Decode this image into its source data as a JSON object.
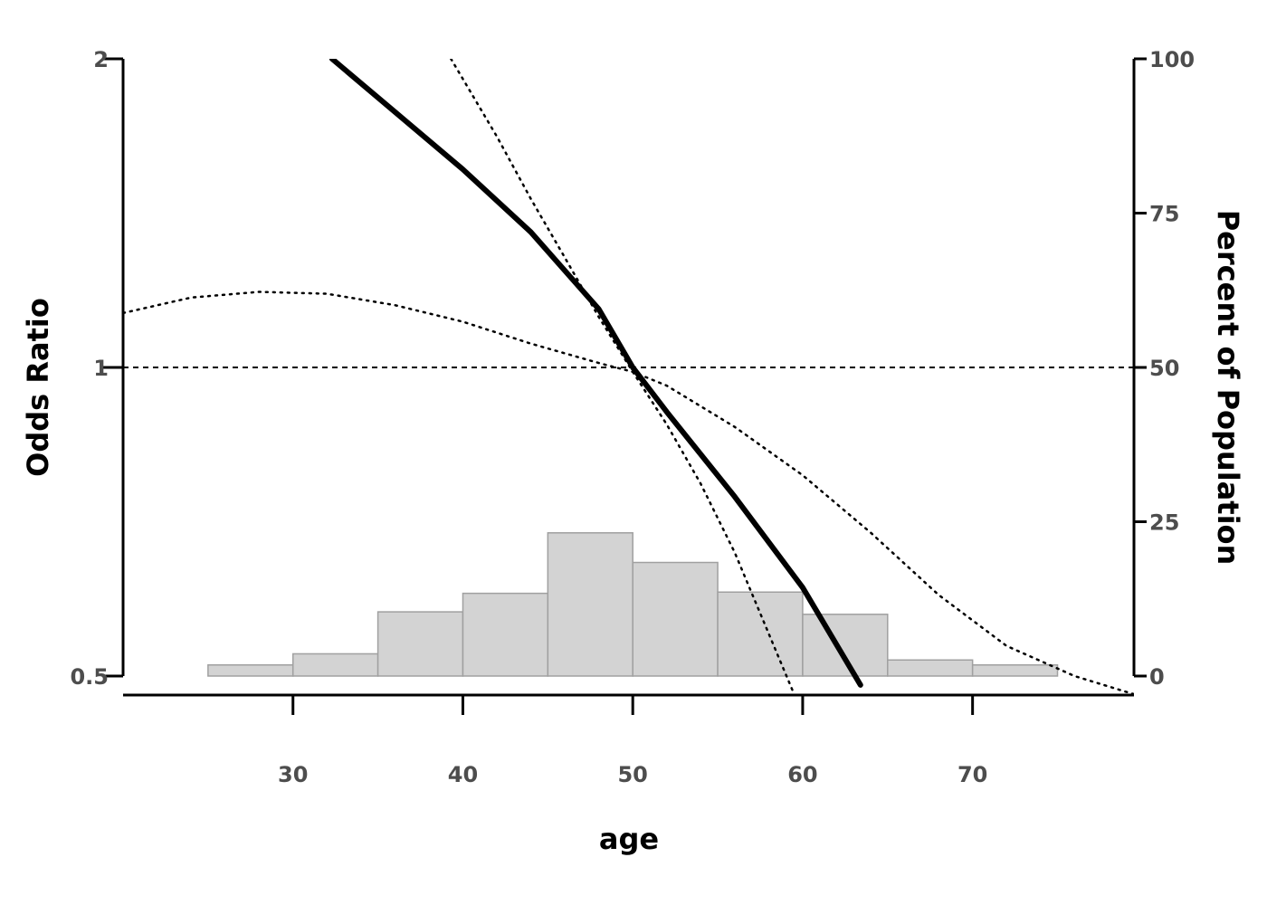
{
  "chart_data": {
    "type": "line",
    "xlabel": "age",
    "ylabel": "Odds Ratio",
    "y2label": "Percent of Population",
    "x_ticks": [
      30,
      40,
      50,
      60,
      70
    ],
    "x_range": [
      20,
      79.5
    ],
    "y_scale": "log",
    "y_ticks": [
      0.5,
      1,
      2
    ],
    "y_tick_labels": [
      "0.5",
      "1",
      "2"
    ],
    "y_range": [
      0.5,
      2
    ],
    "y2_ticks": [
      0,
      25,
      50,
      75,
      100
    ],
    "y2_range": [
      0,
      100
    ],
    "reference_line": {
      "y": 1,
      "style": "dashed"
    },
    "series": [
      {
        "role": "estimate",
        "style": "solid",
        "x": [
          32.3,
          36,
          40,
          44,
          48,
          50,
          52,
          56,
          60,
          63.4
        ],
        "y": [
          2.0,
          1.775,
          1.56,
          1.355,
          1.14,
          1.0,
          0.905,
          0.748,
          0.61,
          0.49
        ]
      },
      {
        "role": "upper-bound",
        "style": "dotted",
        "x": [
          20,
          24,
          28,
          32,
          36,
          40,
          44,
          48,
          50,
          52,
          56,
          60,
          64,
          68,
          72,
          76,
          79.5
        ],
        "y": [
          1.13,
          1.17,
          1.185,
          1.18,
          1.15,
          1.108,
          1.055,
          1.01,
          0.99,
          0.96,
          0.875,
          0.785,
          0.69,
          0.6,
          0.535,
          0.5,
          0.48
        ]
      },
      {
        "role": "lower-bound",
        "style": "dotted",
        "x": [
          39.3,
          42,
          44,
          46,
          48,
          50,
          52,
          54,
          56,
          58,
          59.5
        ],
        "y": [
          2.0,
          1.68,
          1.46,
          1.28,
          1.12,
          0.99,
          0.88,
          0.77,
          0.66,
          0.55,
          0.48
        ]
      }
    ],
    "histogram": {
      "bin_edges": [
        25,
        30,
        35,
        40,
        45,
        50,
        55,
        60,
        65,
        70,
        75
      ],
      "percent": [
        1.8,
        3.6,
        10.4,
        13.4,
        23.2,
        18.4,
        13.6,
        10.0,
        2.6,
        1.8
      ]
    },
    "colors": {
      "line": "#000000",
      "bar_fill": "#d3d3d3",
      "bar_stroke": "#a0a0a0",
      "tick_label": "#4d4d4d"
    },
    "grid": false
  }
}
